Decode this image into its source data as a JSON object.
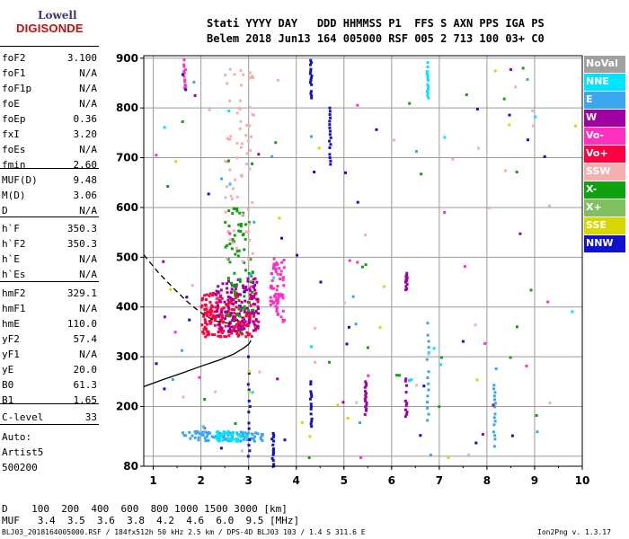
{
  "logo": {
    "top": "Lowell",
    "bottom": "DIGISONDE"
  },
  "header": {
    "line1": "Stati YYYY DAY   DDD HHMMSS P1  FFS S AXN PPS IGA PS",
    "line2": "Belem 2018 Jun13 164 005000 RSF 005 2 713 100 03+ C0"
  },
  "params": [
    {
      "key": "foF2",
      "value": "3.100"
    },
    {
      "key": "foF1",
      "value": "N/A"
    },
    {
      "key": "foF1p",
      "value": "N/A"
    },
    {
      "key": "foE",
      "value": "N/A"
    },
    {
      "key": "foEp",
      "value": "0.36"
    },
    {
      "key": "fxI",
      "value": "3.20"
    },
    {
      "key": "foEs",
      "value": "N/A"
    },
    {
      "key": "fmin",
      "value": "2.60"
    },
    {
      "key": "MUF(D)",
      "value": "9.48"
    },
    {
      "key": "M(D)",
      "value": "3.06"
    },
    {
      "key": "D",
      "value": "N/A"
    },
    {
      "key": "h`F",
      "value": "350.3"
    },
    {
      "key": "h`F2",
      "value": "350.3"
    },
    {
      "key": "h`E",
      "value": "N/A"
    },
    {
      "key": "h`Es",
      "value": "N/A"
    },
    {
      "key": "hmF2",
      "value": "329.1"
    },
    {
      "key": "hmF1",
      "value": "N/A"
    },
    {
      "key": "hmE",
      "value": "110.0"
    },
    {
      "key": "yF2",
      "value": "57.4"
    },
    {
      "key": "yF1",
      "value": "N/A"
    },
    {
      "key": "yE",
      "value": "20.0"
    },
    {
      "key": "B0",
      "value": "61.3"
    },
    {
      "key": "B1",
      "value": "1.65"
    },
    {
      "key": "C-level",
      "value": "33"
    }
  ],
  "auto": {
    "label": "Auto:",
    "artist": "Artist5",
    "code": "500200"
  },
  "legend": [
    {
      "label": "NoVal",
      "color": "#a0a0a0"
    },
    {
      "label": "NNE",
      "color": "#00e4ff"
    },
    {
      "label": "E",
      "color": "#3aa6f0"
    },
    {
      "label": "W",
      "color": "#a000a0"
    },
    {
      "label": "Vo-",
      "color": "#ff30c0"
    },
    {
      "label": "Vo+",
      "color": "#ff0040"
    },
    {
      "label": "SSW",
      "color": "#f4b0b0"
    },
    {
      "label": "X-",
      "color": "#10a010"
    },
    {
      "label": "X+",
      "color": "#80c060"
    },
    {
      "label": "SSE",
      "color": "#d8d800"
    },
    {
      "label": "NNW",
      "color": "#1010d0"
    }
  ],
  "bottom": {
    "d_row": "D    100  200  400  600  800 1000 1500 3000 [km]",
    "muf_row": "MUF   3.4  3.5  3.6  3.8  4.2  4.6  6.0  9.5 [MHz]"
  },
  "footer": {
    "left": "BLJ03_2018164005000.RSF / 184fx512h 50 kHz 2.5 km / DPS-4D BLJ03 103 / 1.4 S 311.6 E",
    "right": "Ion2Png v. 1.3.17"
  },
  "chart_data": {
    "type": "scatter",
    "xlim": [
      0.8,
      10
    ],
    "ylim": [
      80,
      905
    ],
    "x_ticks": [
      "1",
      "2",
      "3",
      "4",
      "5",
      "6",
      "7",
      "8",
      "9",
      "10"
    ],
    "y_ticks": [
      "80",
      "100",
      "200",
      "300",
      "400",
      "500",
      "600",
      "700",
      "800",
      "900"
    ],
    "xlabel": "",
    "ylabel": "",
    "grid": true,
    "traces": [
      {
        "name": "true height profile",
        "style": "solid",
        "color": "#000000",
        "points": [
          [
            0.8,
            240
          ],
          [
            1.2,
            254
          ],
          [
            1.6,
            267
          ],
          [
            2.0,
            281
          ],
          [
            2.4,
            294
          ],
          [
            2.7,
            306
          ],
          [
            2.9,
            318
          ],
          [
            3.0,
            325
          ],
          [
            3.05,
            333
          ]
        ]
      },
      {
        "name": "virtual height trace",
        "style": "dashed",
        "color": "#000000",
        "points": [
          [
            0.8,
            505
          ],
          [
            1.1,
            470
          ],
          [
            1.4,
            440
          ],
          [
            1.7,
            412
          ],
          [
            1.95,
            392
          ],
          [
            2.1,
            382
          ],
          [
            2.3,
            372
          ],
          [
            2.6,
            367
          ],
          [
            2.9,
            380
          ]
        ]
      }
    ],
    "echo_clusters": [
      {
        "class": "Vo+",
        "x": [
          2.0,
          3.2
        ],
        "y": [
          340,
          430
        ],
        "n": 220
      },
      {
        "class": "W",
        "x": [
          2.3,
          3.2
        ],
        "y": [
          350,
          460
        ],
        "n": 120
      },
      {
        "class": "X-",
        "x": [
          2.5,
          3.1
        ],
        "y": [
          380,
          600
        ],
        "n": 70
      },
      {
        "class": "E",
        "x": [
          1.6,
          3.3
        ],
        "y": [
          130,
          150
        ],
        "n": 90
      },
      {
        "class": "NNE",
        "x": [
          2.3,
          3.0
        ],
        "y": [
          130,
          150
        ],
        "n": 40
      },
      {
        "class": "Vo-",
        "x": [
          3.45,
          3.75
        ],
        "y": [
          370,
          500
        ],
        "n": 70
      },
      {
        "class": "SSW",
        "x": [
          2.5,
          3.1
        ],
        "y": [
          480,
          890
        ],
        "n": 70
      }
    ],
    "echo_columns": [
      {
        "class": "Vo-",
        "x": 1.65,
        "y": [
          840,
          900
        ]
      },
      {
        "class": "NNW",
        "x": 3.0,
        "y": [
          100,
          300
        ]
      },
      {
        "class": "NNW",
        "x": 3.5,
        "y": [
          80,
          150
        ]
      },
      {
        "class": "NNW",
        "x": 4.3,
        "y": [
          820,
          900
        ]
      },
      {
        "class": "NNW",
        "x": 4.3,
        "y": [
          160,
          250
        ]
      },
      {
        "class": "NNW",
        "x": 4.7,
        "y": [
          680,
          800
        ]
      },
      {
        "class": "W",
        "x": 5.45,
        "y": [
          180,
          250
        ]
      },
      {
        "class": "W",
        "x": 6.3,
        "y": [
          180,
          260
        ]
      },
      {
        "class": "E",
        "x": 6.75,
        "y": [
          160,
          380
        ]
      },
      {
        "class": "NNE",
        "x": 6.75,
        "y": [
          820,
          900
        ]
      },
      {
        "class": "E",
        "x": 8.15,
        "y": [
          120,
          250
        ]
      },
      {
        "class": "W",
        "x": 6.3,
        "y": [
          430,
          470
        ]
      }
    ]
  }
}
